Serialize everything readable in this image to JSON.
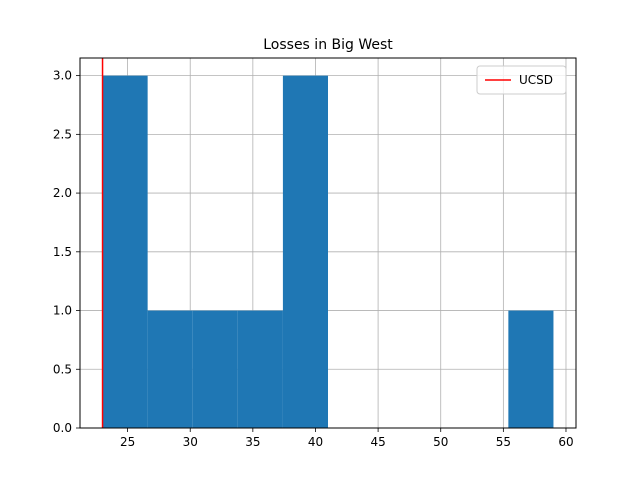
{
  "chart_data": {
    "type": "bar",
    "subtype": "histogram",
    "title": "Losses in Big West",
    "xlabel": "",
    "ylabel": "",
    "bins": [
      {
        "start": 23.0,
        "end": 26.6,
        "count": 3
      },
      {
        "start": 26.6,
        "end": 30.2,
        "count": 1
      },
      {
        "start": 30.2,
        "end": 33.8,
        "count": 1
      },
      {
        "start": 33.8,
        "end": 37.4,
        "count": 1
      },
      {
        "start": 37.4,
        "end": 41.0,
        "count": 3
      },
      {
        "start": 41.0,
        "end": 44.6,
        "count": 0
      },
      {
        "start": 44.6,
        "end": 48.2,
        "count": 0
      },
      {
        "start": 48.2,
        "end": 51.8,
        "count": 0
      },
      {
        "start": 51.8,
        "end": 55.4,
        "count": 0
      },
      {
        "start": 55.4,
        "end": 59.0,
        "count": 1
      }
    ],
    "reference_line": {
      "label": "UCSD",
      "x": 23,
      "color": "#ff0000"
    },
    "bar_color": "#1f77b4",
    "xlim": [
      21.2,
      60.8
    ],
    "ylim": [
      0,
      3.15
    ],
    "xticks": [
      "25",
      "30",
      "35",
      "40",
      "45",
      "50",
      "55",
      "60"
    ],
    "xtick_values": [
      25,
      30,
      35,
      40,
      45,
      50,
      55,
      60
    ],
    "yticks": [
      "0.0",
      "0.5",
      "1.0",
      "1.5",
      "2.0",
      "2.5",
      "3.0"
    ],
    "ytick_values": [
      0,
      0.5,
      1.0,
      1.5,
      2.0,
      2.5,
      3.0
    ],
    "grid": true,
    "legend": {
      "position": "top-right",
      "entries": [
        "UCSD"
      ]
    }
  }
}
